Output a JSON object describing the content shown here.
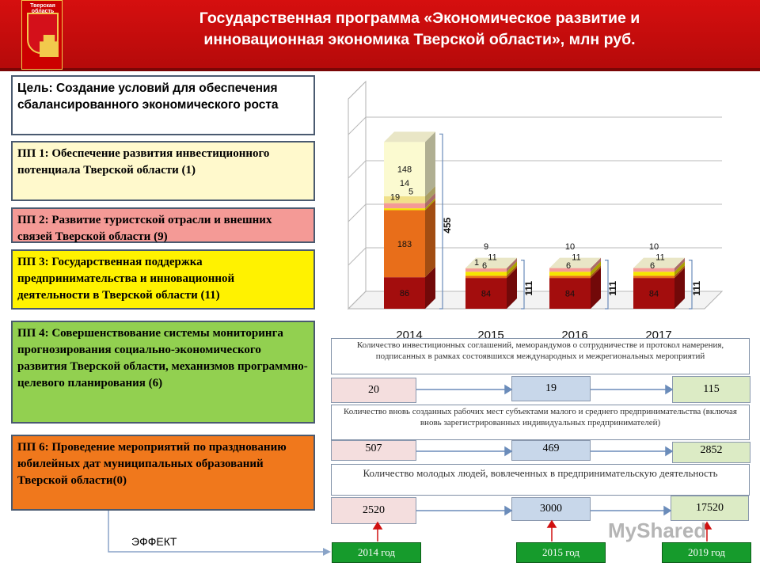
{
  "header": {
    "region_label": "Тверская область",
    "title": "Государственная программа «Экономическое развитие и инновационная экономика Тверской области», млн руб."
  },
  "goal": "Цель: Создание условий для обеспечения сбалансированного экономического роста",
  "subprograms": [
    {
      "text": "ПП 1: Обеспечение развития инвестиционного потенциала Тверской области (1)",
      "color": "#fff9cc"
    },
    {
      "text": "ПП 2: Развитие туристской отрасли и внешних связей Тверской области (9)",
      "color": "#f49a96"
    },
    {
      "text": "ПП 3: Государственная поддержка предпринимательства и инновационной деятельности в Тверской области (11)",
      "color": "#fff200"
    },
    {
      "text": "ПП 4: Совершенствование системы мониторинга прогнозирования социально-экономического развития Тверской области, механизмов программно-целевого планирования (6)",
      "color": "#92d050"
    },
    {
      "text": "ПП 6: Проведение мероприятий по празднованию юбилейных дат муниципальных образований Тверской области(0)",
      "color": "#f0781c"
    }
  ],
  "chart_data": {
    "type": "bar",
    "stacked": true,
    "categories": [
      "2014",
      "2015",
      "2016",
      "2017"
    ],
    "series": [
      {
        "values": [
          86,
          84,
          84,
          84
        ],
        "color": "#a30d0d"
      },
      {
        "values": [
          183,
          6,
          6,
          6
        ],
        "color": "#e86e1a"
      },
      {
        "values": [
          5,
          11,
          11,
          11
        ],
        "color": "#f4e600"
      },
      {
        "values": [
          14,
          9,
          10,
          10
        ],
        "color": "#f49a96"
      },
      {
        "values": [
          19,
          1,
          0,
          0
        ],
        "color": "#f0e08a"
      },
      {
        "values": [
          148,
          0,
          0,
          0
        ],
        "color": "#fbfad0"
      }
    ],
    "totals": [
      "455",
      "111",
      "111",
      "111"
    ],
    "segment_labels": [
      [
        {
          "text": "86"
        },
        {
          "text": "183"
        },
        {
          "text": "5"
        },
        {
          "text": "14"
        },
        {
          "text": "19"
        },
        {
          "text": "148"
        }
      ],
      [
        {
          "text": "84"
        },
        {
          "text": "6"
        },
        {
          "text": "11"
        },
        {
          "text": "9"
        },
        {
          "text": "1"
        }
      ],
      [
        {
          "text": "84"
        },
        {
          "text": "6"
        },
        {
          "text": "11"
        },
        {
          "text": "10"
        }
      ],
      [
        {
          "text": "84"
        },
        {
          "text": "6"
        },
        {
          "text": "11"
        },
        {
          "text": "10"
        }
      ]
    ]
  },
  "indicators": [
    {
      "label": "Количество инвестиционных соглашений, меморандумов о сотрудничестве и протокол намерения, подписанных в рамках состоявшихся международных и межрегиональных мероприятий",
      "values": [
        "20",
        "19",
        "115"
      ]
    },
    {
      "label": "Количество вновь созданных рабочих мест субъектами малого и среднего предпринимательства (включая вновь зарегистрированных индивидуальных предпринимателей)",
      "values": [
        "507",
        "469",
        "2852"
      ]
    },
    {
      "label": "Количество молодых людей, вовлеченных в предпринимательскую деятельность",
      "values": [
        "2520",
        "3000",
        "17520"
      ]
    }
  ],
  "years": [
    "2014 год",
    "2015 год",
    "2019 год"
  ],
  "effect_label": "ЭФФЕКТ",
  "watermark": "MyShared"
}
